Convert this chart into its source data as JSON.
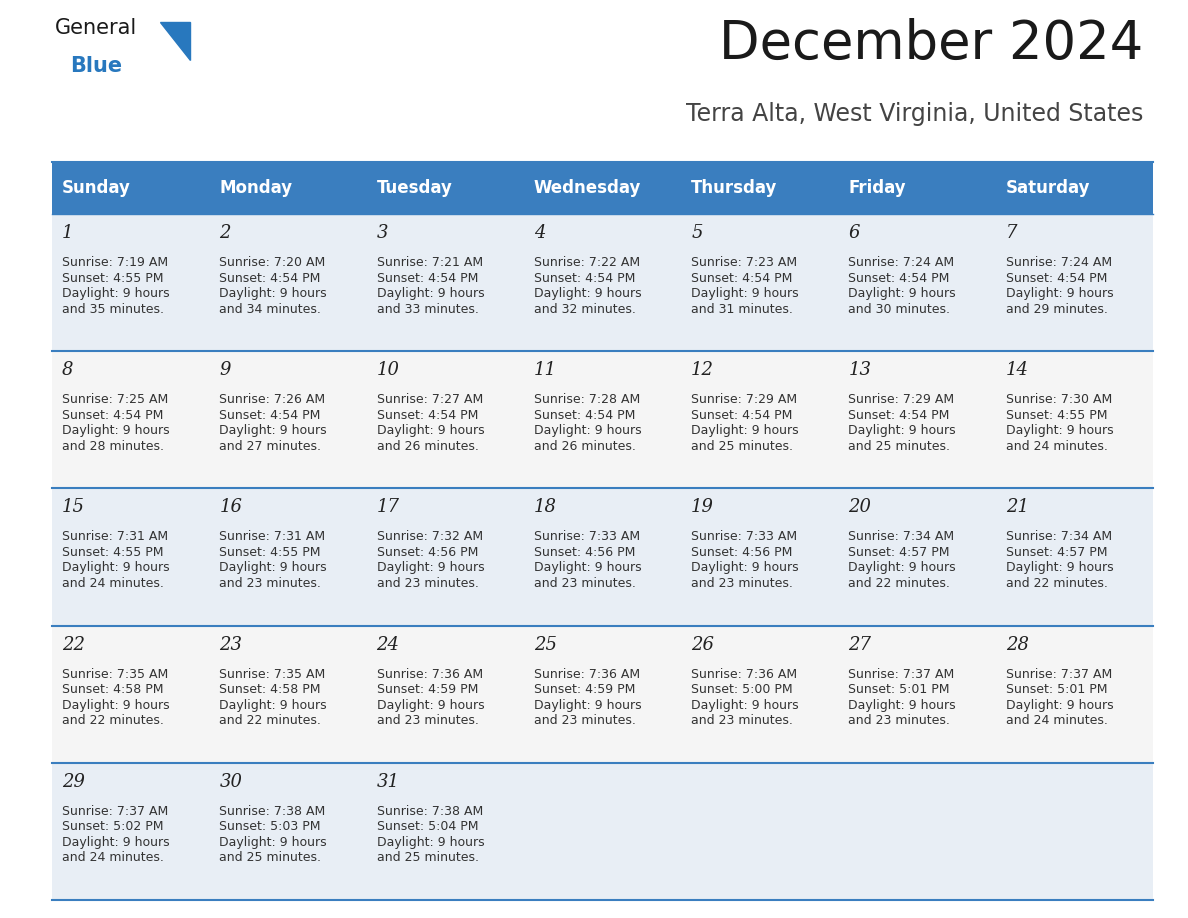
{
  "title": "December 2024",
  "subtitle": "Terra Alta, West Virginia, United States",
  "header_color": "#3a7ebf",
  "header_text_color": "#ffffff",
  "cell_bg_color": "#e8eef5",
  "cell_bg_alt_color": "#f5f5f5",
  "day_number_color": "#222222",
  "text_color": "#333333",
  "line_color": "#3a7ebf",
  "bg_color": "#ffffff",
  "days_of_week": [
    "Sunday",
    "Monday",
    "Tuesday",
    "Wednesday",
    "Thursday",
    "Friday",
    "Saturday"
  ],
  "weeks": [
    [
      {
        "day": 1,
        "sunrise": "7:19 AM",
        "sunset": "4:55 PM",
        "daylight_min": "35"
      },
      {
        "day": 2,
        "sunrise": "7:20 AM",
        "sunset": "4:54 PM",
        "daylight_min": "34"
      },
      {
        "day": 3,
        "sunrise": "7:21 AM",
        "sunset": "4:54 PM",
        "daylight_min": "33"
      },
      {
        "day": 4,
        "sunrise": "7:22 AM",
        "sunset": "4:54 PM",
        "daylight_min": "32"
      },
      {
        "day": 5,
        "sunrise": "7:23 AM",
        "sunset": "4:54 PM",
        "daylight_min": "31"
      },
      {
        "day": 6,
        "sunrise": "7:24 AM",
        "sunset": "4:54 PM",
        "daylight_min": "30"
      },
      {
        "day": 7,
        "sunrise": "7:24 AM",
        "sunset": "4:54 PM",
        "daylight_min": "29"
      }
    ],
    [
      {
        "day": 8,
        "sunrise": "7:25 AM",
        "sunset": "4:54 PM",
        "daylight_min": "28"
      },
      {
        "day": 9,
        "sunrise": "7:26 AM",
        "sunset": "4:54 PM",
        "daylight_min": "27"
      },
      {
        "day": 10,
        "sunrise": "7:27 AM",
        "sunset": "4:54 PM",
        "daylight_min": "26"
      },
      {
        "day": 11,
        "sunrise": "7:28 AM",
        "sunset": "4:54 PM",
        "daylight_min": "26"
      },
      {
        "day": 12,
        "sunrise": "7:29 AM",
        "sunset": "4:54 PM",
        "daylight_min": "25"
      },
      {
        "day": 13,
        "sunrise": "7:29 AM",
        "sunset": "4:54 PM",
        "daylight_min": "25"
      },
      {
        "day": 14,
        "sunrise": "7:30 AM",
        "sunset": "4:55 PM",
        "daylight_min": "24"
      }
    ],
    [
      {
        "day": 15,
        "sunrise": "7:31 AM",
        "sunset": "4:55 PM",
        "daylight_min": "24"
      },
      {
        "day": 16,
        "sunrise": "7:31 AM",
        "sunset": "4:55 PM",
        "daylight_min": "23"
      },
      {
        "day": 17,
        "sunrise": "7:32 AM",
        "sunset": "4:56 PM",
        "daylight_min": "23"
      },
      {
        "day": 18,
        "sunrise": "7:33 AM",
        "sunset": "4:56 PM",
        "daylight_min": "23"
      },
      {
        "day": 19,
        "sunrise": "7:33 AM",
        "sunset": "4:56 PM",
        "daylight_min": "23"
      },
      {
        "day": 20,
        "sunrise": "7:34 AM",
        "sunset": "4:57 PM",
        "daylight_min": "22"
      },
      {
        "day": 21,
        "sunrise": "7:34 AM",
        "sunset": "4:57 PM",
        "daylight_min": "22"
      }
    ],
    [
      {
        "day": 22,
        "sunrise": "7:35 AM",
        "sunset": "4:58 PM",
        "daylight_min": "22"
      },
      {
        "day": 23,
        "sunrise": "7:35 AM",
        "sunset": "4:58 PM",
        "daylight_min": "22"
      },
      {
        "day": 24,
        "sunrise": "7:36 AM",
        "sunset": "4:59 PM",
        "daylight_min": "23"
      },
      {
        "day": 25,
        "sunrise": "7:36 AM",
        "sunset": "4:59 PM",
        "daylight_min": "23"
      },
      {
        "day": 26,
        "sunrise": "7:36 AM",
        "sunset": "5:00 PM",
        "daylight_min": "23"
      },
      {
        "day": 27,
        "sunrise": "7:37 AM",
        "sunset": "5:01 PM",
        "daylight_min": "23"
      },
      {
        "day": 28,
        "sunrise": "7:37 AM",
        "sunset": "5:01 PM",
        "daylight_min": "24"
      }
    ],
    [
      {
        "day": 29,
        "sunrise": "7:37 AM",
        "sunset": "5:02 PM",
        "daylight_min": "24"
      },
      {
        "day": 30,
        "sunrise": "7:38 AM",
        "sunset": "5:03 PM",
        "daylight_min": "25"
      },
      {
        "day": 31,
        "sunrise": "7:38 AM",
        "sunset": "5:04 PM",
        "daylight_min": "25"
      },
      null,
      null,
      null,
      null
    ]
  ],
  "logo_general_color": "#1a1a1a",
  "logo_blue_color": "#2878be",
  "logo_triangle_color": "#2878be",
  "title_fontsize": 38,
  "subtitle_fontsize": 17,
  "header_fontsize": 12,
  "day_num_fontsize": 13,
  "cell_text_fontsize": 9
}
